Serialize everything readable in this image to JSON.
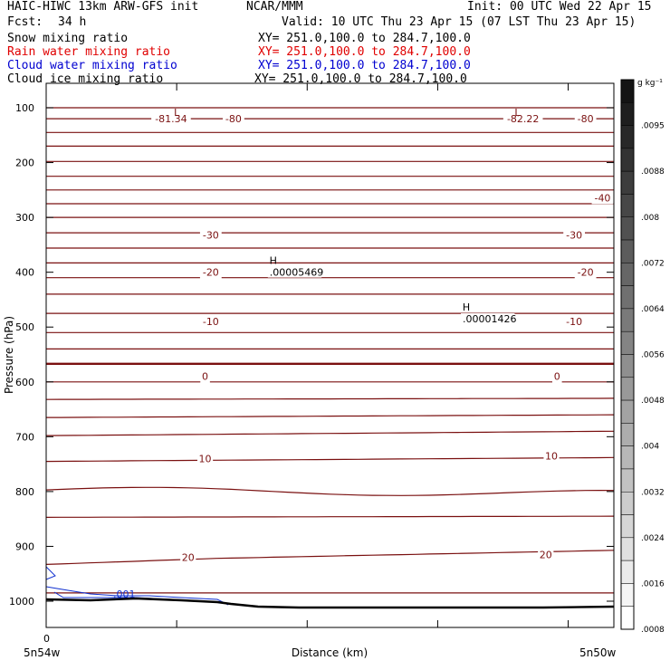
{
  "header": {
    "title_left": "HAIC-HIWC 13km ARW-GFS init",
    "title_mid": "NCAR/MMM",
    "init": "Init: 00 UTC Wed 22 Apr 15",
    "fcst_label": "Fcst:",
    "fcst_value": "34 h",
    "valid": "Valid: 10 UTC Thu 23 Apr 15 (07 LST Thu 23 Apr 15)"
  },
  "fields": [
    {
      "name": "Snow mixing ratio",
      "xy": "XY= 251.0,100.0 to 284.7,100.0",
      "color": "#000000"
    },
    {
      "name": "Rain water mixing ratio",
      "xy": "XY= 251.0,100.0 to 284.7,100.0",
      "color": "#e00000"
    },
    {
      "name": "Cloud water mixing ratio",
      "xy": "XY= 251.0,100.0 to 284.7,100.0",
      "color": "#0000d0"
    },
    {
      "name": "Cloud ice mixing ratio",
      "xy": "XY= 251.0,100.0 to 284.7,100.0",
      "color": "#000000"
    }
  ],
  "colorbar": {
    "unit": "g kg⁻¹",
    "labels": [
      ".0095",
      ".0088",
      ".008",
      ".0072",
      ".0064",
      ".0056",
      ".0048",
      ".004",
      ".0032",
      ".0024",
      ".0016",
      ".0008"
    ]
  },
  "chart_data": {
    "type": "contour",
    "xlabel": "Distance (km)",
    "ylabel": "Pressure (hPa)",
    "x_start_label": "5n54w",
    "x_end_label": "5n50w",
    "x_zero_label": "0",
    "yticks": [
      "100",
      "200",
      "300",
      "400",
      "500",
      "600",
      "700",
      "800",
      "900",
      "1000"
    ],
    "temperature_contour_labels": [
      {
        "text": "-81.34",
        "p": 120,
        "frac": 0.22
      },
      {
        "text": "-80",
        "p": 120,
        "frac": 0.33
      },
      {
        "text": "-82.22",
        "p": 120,
        "frac": 0.84
      },
      {
        "text": "-80",
        "p": 120,
        "frac": 0.95
      },
      {
        "text": "-40",
        "p": 264,
        "frac": 0.98
      },
      {
        "text": "-30",
        "p": 332,
        "frac": 0.29
      },
      {
        "text": "-30",
        "p": 332,
        "frac": 0.93
      },
      {
        "text": "-20",
        "p": 400,
        "frac": 0.29
      },
      {
        "text": "-20",
        "p": 400,
        "frac": 0.95
      },
      {
        "text": "-10",
        "p": 490,
        "frac": 0.29
      },
      {
        "text": "-10",
        "p": 490,
        "frac": 0.93
      },
      {
        "text": "0",
        "p": 590,
        "frac": 0.28
      },
      {
        "text": "0",
        "p": 590,
        "frac": 0.9
      },
      {
        "text": "10",
        "p": 740,
        "frac": 0.28
      },
      {
        "text": "10",
        "p": 735,
        "frac": 0.89
      },
      {
        "text": "20",
        "p": 920,
        "frac": 0.25
      },
      {
        "text": "20",
        "p": 915,
        "frac": 0.88
      }
    ],
    "extrema": [
      {
        "type": "L",
        "p": 115,
        "frac": 0.23
      },
      {
        "type": "L",
        "p": 115,
        "frac": 0.83
      },
      {
        "type": "H",
        "value": ".00005469",
        "p": 385,
        "frac": 0.4
      },
      {
        "type": "H",
        "value": ".00001426",
        "p": 470,
        "frac": 0.74
      }
    ],
    "cloud_water_label": ".001"
  }
}
